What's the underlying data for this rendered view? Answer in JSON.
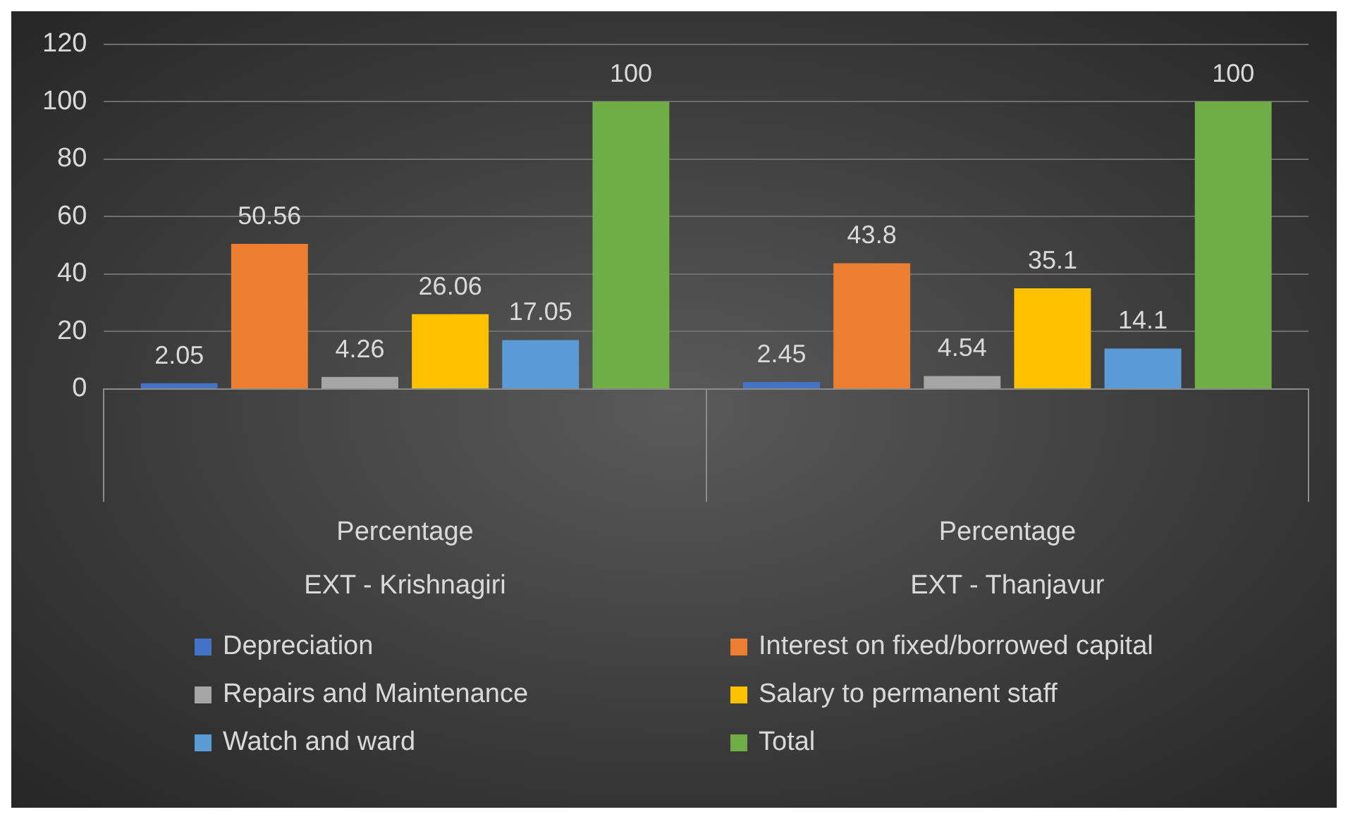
{
  "chart_data": {
    "type": "bar",
    "categories": [
      "Percentage\nEXT - Krishnagiri",
      "Percentage\nEXT - Thanjavur"
    ],
    "series": [
      {
        "name": "Depreciation",
        "color": "#4472c4",
        "values": [
          2.05,
          2.45
        ]
      },
      {
        "name": "Interest on fixed/borrowed capital",
        "color": "#ed7d31",
        "values": [
          50.56,
          43.8
        ]
      },
      {
        "name": "Repairs and Maintenance",
        "color": "#a5a5a5",
        "values": [
          4.26,
          4.54
        ]
      },
      {
        "name": "Salary to permanent staff",
        "color": "#ffc000",
        "values": [
          26.06,
          35.1
        ]
      },
      {
        "name": "Watch and ward",
        "color": "#5b9bd5",
        "values": [
          17.05,
          14.1
        ]
      },
      {
        "name": "Total",
        "color": "#70ad47",
        "values": [
          100,
          100
        ]
      }
    ],
    "ylim": [
      0,
      120
    ],
    "yticks": [
      0,
      20,
      40,
      60,
      80,
      100,
      120
    ],
    "grid": "y",
    "data_labels": true,
    "legend": "bottom"
  }
}
